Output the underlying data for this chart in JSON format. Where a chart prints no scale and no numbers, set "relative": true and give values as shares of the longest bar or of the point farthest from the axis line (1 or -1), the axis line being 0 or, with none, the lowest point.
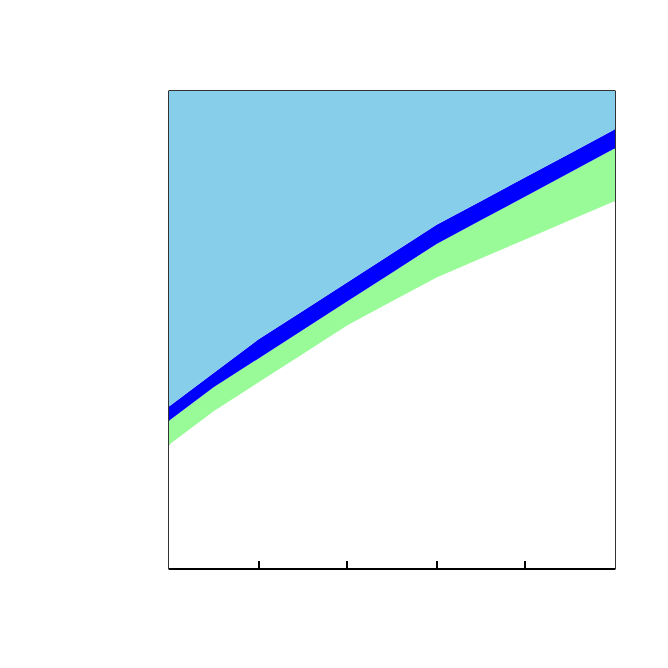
{
  "chart_data": {
    "type": "area",
    "relative": true,
    "stacked": true,
    "categories": [
      null,
      null,
      null,
      null,
      null,
      null,
      null,
      null,
      null,
      null,
      null
    ],
    "series": [
      {
        "color": "#ffffff",
        "values": [
          0.26,
          0.33,
          0.39,
          0.45,
          0.51,
          0.56,
          0.61,
          0.65,
          0.69,
          0.73,
          0.77
        ]
      },
      {
        "color": "#98fb98",
        "values": [
          0.05,
          0.05,
          0.05,
          0.05,
          0.05,
          0.06,
          0.07,
          0.08,
          0.09,
          0.1,
          0.11
        ]
      },
      {
        "color": "#0000ff",
        "values": [
          0.03,
          0.03,
          0.04,
          0.04,
          0.04,
          0.04,
          0.04,
          0.04,
          0.04,
          0.04,
          0.04
        ]
      },
      {
        "color": "#87ceeb",
        "values": [
          0.66,
          0.59,
          0.52,
          0.46,
          0.4,
          0.34,
          0.28,
          0.23,
          0.18,
          0.13,
          0.08
        ]
      }
    ]
  }
}
